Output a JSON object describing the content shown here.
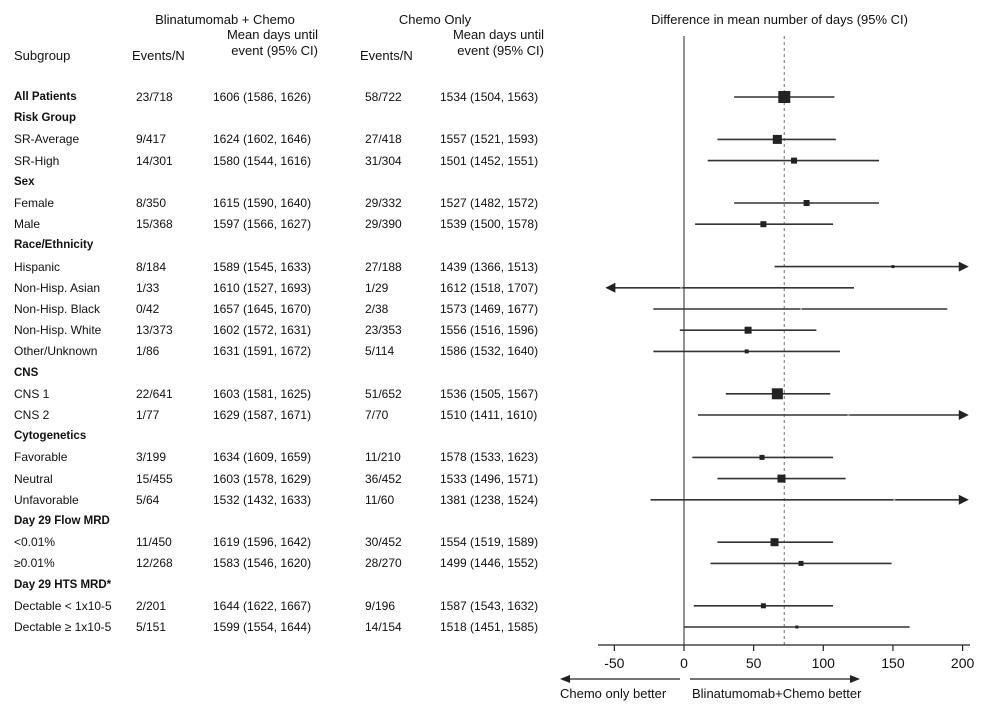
{
  "chart_data": {
    "type": "forest",
    "headers": {
      "title": "Difference in mean number of days (95% CI)",
      "subgroup": "Subgroup",
      "group1": "Blinatumomab + Chemo",
      "group2": "Chemo Only",
      "events_n": "Events/N",
      "mean_days_line1": "Mean days until",
      "mean_days_line2": "event (95% CI)"
    },
    "x_axis": {
      "ticks": [
        -50,
        0,
        50,
        100,
        150,
        200
      ],
      "tick_labels": [
        "-50",
        "0",
        "50",
        "100",
        "150",
        "200"
      ],
      "range": [
        -55,
        203
      ],
      "reference_line": 0,
      "overall_dashed_line": 72
    },
    "direction_labels": {
      "left": "Chemo only better",
      "right": "Blinatumomab+Chemo better"
    },
    "rows": [
      {
        "label": "All Patients",
        "header": false,
        "bold": true,
        "g1_events": "23/718",
        "g1_mean": "1606 (1586, 1626)",
        "g2_events": "58/722",
        "g2_mean": "1534 (1504, 1563)",
        "est": 72,
        "lo": 36,
        "hi": 108,
        "size": 12
      },
      {
        "label": "Risk Group",
        "header": true
      },
      {
        "label": "SR-Average",
        "header": false,
        "g1_events": "9/417",
        "g1_mean": "1624 (1602, 1646)",
        "g2_events": "27/418",
        "g2_mean": "1557 (1521, 1593)",
        "est": 67,
        "lo": 24,
        "hi": 109,
        "size": 9
      },
      {
        "label": "SR-High",
        "header": false,
        "g1_events": "14/301",
        "g1_mean": "1580 (1544, 1616)",
        "g2_events": "31/304",
        "g2_mean": "1501 (1452, 1551)",
        "est": 79,
        "lo": 17,
        "hi": 140,
        "size": 6
      },
      {
        "label": "Sex",
        "header": true
      },
      {
        "label": "Female",
        "header": false,
        "g1_events": "8/350",
        "g1_mean": "1615 (1590, 1640)",
        "g2_events": "29/332",
        "g2_mean": "1527 (1482, 1572)",
        "est": 88,
        "lo": 36,
        "hi": 140,
        "size": 6
      },
      {
        "label": "Male",
        "header": false,
        "g1_events": "15/368",
        "g1_mean": "1597 (1566, 1627)",
        "g2_events": "29/390",
        "g2_mean": "1539 (1500, 1578)",
        "est": 57,
        "lo": 8,
        "hi": 107,
        "size": 6
      },
      {
        "label": "Race/Ethnicity",
        "header": true
      },
      {
        "label": "Hispanic",
        "header": false,
        "g1_events": "8/184",
        "g1_mean": "1589 (1545, 1633)",
        "g2_events": "27/188",
        "g2_mean": "1439 (1366, 1513)",
        "est": 150,
        "lo": 65,
        "hi": 203,
        "size": 3,
        "arrow_right": true
      },
      {
        "label": "Non-Hisp. Asian",
        "header": false,
        "g1_events": "1/33",
        "g1_mean": "1610 (1527, 1693)",
        "g2_events": "1/29",
        "g2_mean": "1612 (1518, 1707)",
        "est": -2,
        "lo": -55,
        "hi": 122,
        "size": 0,
        "arrow_left": true
      },
      {
        "label": "Non-Hisp. Black",
        "header": false,
        "g1_events": "0/42",
        "g1_mean": "1657 (1645, 1670)",
        "g2_events": "2/38",
        "g2_mean": "1573 (1469, 1677)",
        "est": 84,
        "lo": -22,
        "hi": 189,
        "size": 0
      },
      {
        "label": "Non-Hisp. White",
        "header": false,
        "g1_events": "13/373",
        "g1_mean": "1602 (1572, 1631)",
        "g2_events": "23/353",
        "g2_mean": "1556 (1516, 1596)",
        "est": 46,
        "lo": -3,
        "hi": 95,
        "size": 7
      },
      {
        "label": "Other/Unknown",
        "header": false,
        "g1_events": "1/86",
        "g1_mean": "1631 (1591, 1672)",
        "g2_events": "5/114",
        "g2_mean": "1586 (1532, 1640)",
        "est": 45,
        "lo": -22,
        "hi": 112,
        "size": 4
      },
      {
        "label": "CNS",
        "header": true
      },
      {
        "label": "CNS 1",
        "header": false,
        "g1_events": "22/641",
        "g1_mean": "1603 (1581, 1625)",
        "g2_events": "51/652",
        "g2_mean": "1536 (1505, 1567)",
        "est": 67,
        "lo": 30,
        "hi": 105,
        "size": 11
      },
      {
        "label": "CNS 2",
        "header": false,
        "g1_events": "1/77",
        "g1_mean": "1629 (1587, 1671)",
        "g2_events": "7/70",
        "g2_mean": "1510 (1411, 1610)",
        "est": 118,
        "lo": 10,
        "hi": 203,
        "size": 0,
        "arrow_right": true
      },
      {
        "label": "Cytogenetics",
        "header": true
      },
      {
        "label": "Favorable",
        "header": false,
        "g1_events": "3/199",
        "g1_mean": "1634 (1609, 1659)",
        "g2_events": "11/210",
        "g2_mean": "1578 (1533, 1623)",
        "est": 56,
        "lo": 6,
        "hi": 107,
        "size": 5
      },
      {
        "label": "Neutral",
        "header": false,
        "g1_events": "15/455",
        "g1_mean": "1603 (1578, 1629)",
        "g2_events": "36/452",
        "g2_mean": "1533 (1496, 1571)",
        "est": 70,
        "lo": 24,
        "hi": 116,
        "size": 8
      },
      {
        "label": "Unfavorable",
        "header": false,
        "g1_events": "5/64",
        "g1_mean": "1532 (1432, 1633)",
        "g2_events": "11/60",
        "g2_mean": "1381 (1238, 1524)",
        "est": 151,
        "lo": -24,
        "hi": 203,
        "size": 0,
        "arrow_right": true
      },
      {
        "label": "Day 29 Flow MRD",
        "header": true
      },
      {
        "label": "<0.01%",
        "header": false,
        "g1_events": "11/450",
        "g1_mean": "1619 (1596, 1642)",
        "g2_events": "30/452",
        "g2_mean": "1554 (1519, 1589)",
        "est": 65,
        "lo": 24,
        "hi": 107,
        "size": 8
      },
      {
        "label": "≥0.01%",
        "header": false,
        "g1_events": "12/268",
        "g1_mean": "1583 (1546, 1620)",
        "g2_events": "28/270",
        "g2_mean": "1499 (1446, 1552)",
        "est": 84,
        "lo": 19,
        "hi": 149,
        "size": 5
      },
      {
        "label": "Day 29 HTS MRD*",
        "header": true
      },
      {
        "label": "Dectable < 1x10-5",
        "header": false,
        "g1_events": "2/201",
        "g1_mean": "1644 (1622, 1667)",
        "g2_events": "9/196",
        "g2_mean": "1587 (1543, 1632)",
        "est": 57,
        "lo": 7,
        "hi": 107,
        "size": 5
      },
      {
        "label": "Dectable ≥ 1x10-5",
        "header": false,
        "g1_events": "5/151",
        "g1_mean": "1599 (1554, 1644)",
        "g2_events": "14/154",
        "g2_mean": "1518 (1451, 1585)",
        "est": 81,
        "lo": 0,
        "hi": 162,
        "size": 3
      }
    ]
  }
}
